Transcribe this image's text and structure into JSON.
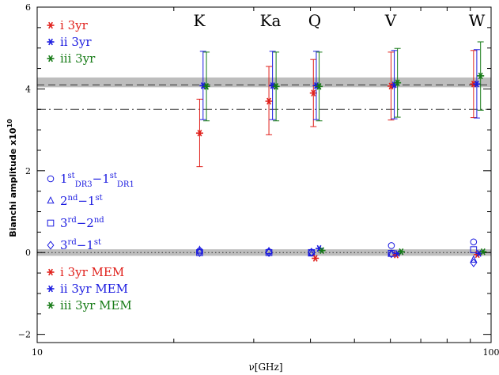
{
  "chart_data": {
    "type": "scatter",
    "xscale": "log",
    "xlim": [
      10,
      100
    ],
    "ylim": [
      -2.2,
      6
    ],
    "xlabel": "ν[GHz]",
    "ylabel": "Bianchi amplitude x10",
    "ylabel_sup": "10",
    "xticks": [
      {
        "value": 10,
        "label": "10"
      },
      {
        "value": 100,
        "label": "100"
      }
    ],
    "yticks": [
      {
        "value": -2,
        "label": "−2"
      },
      {
        "value": 0,
        "label": "0"
      },
      {
        "value": 2,
        "label": "2"
      },
      {
        "value": 4,
        "label": "4"
      },
      {
        "value": 6,
        "label": "6"
      }
    ],
    "bands": [
      {
        "name": "K",
        "freq": 23
      },
      {
        "name": "Ka",
        "freq": 33
      },
      {
        "name": "Q",
        "freq": 41
      },
      {
        "name": "V",
        "freq": 61
      },
      {
        "name": "W",
        "freq": 94
      }
    ],
    "reference_lines": [
      {
        "style": "dashed",
        "y": 4.1
      },
      {
        "style": "dashdot",
        "y": 3.5
      },
      {
        "style": "dotted",
        "y": 0.0
      }
    ],
    "shaded_bands": [
      {
        "y0": 4.04,
        "y1": 4.28
      },
      {
        "y0": -0.08,
        "y1": 0.08
      }
    ],
    "series": [
      {
        "name": "i 3yr",
        "color": "#e0201b",
        "points": [
          {
            "x": 22.8,
            "y": 2.92,
            "lo": 2.1,
            "hi": 3.75
          },
          {
            "x": 32.4,
            "y": 3.7,
            "lo": 2.88,
            "hi": 4.55
          },
          {
            "x": 40.6,
            "y": 3.9,
            "lo": 3.08,
            "hi": 4.72
          },
          {
            "x": 60.2,
            "y": 4.07,
            "lo": 3.24,
            "hi": 4.9
          },
          {
            "x": 91.5,
            "y": 4.12,
            "lo": 3.3,
            "hi": 4.94
          }
        ]
      },
      {
        "name": "ii 3yr",
        "color": "#1b1be0",
        "points": [
          {
            "x": 23.2,
            "y": 4.08,
            "lo": 3.25,
            "hi": 4.92
          },
          {
            "x": 33.0,
            "y": 4.08,
            "lo": 3.25,
            "hi": 4.92
          },
          {
            "x": 41.2,
            "y": 4.08,
            "lo": 3.25,
            "hi": 4.92
          },
          {
            "x": 61.2,
            "y": 4.1,
            "lo": 3.27,
            "hi": 4.94
          },
          {
            "x": 93.0,
            "y": 4.12,
            "lo": 3.29,
            "hi": 4.96
          }
        ]
      },
      {
        "name": "iii 3yr",
        "color": "#157a15",
        "points": [
          {
            "x": 23.6,
            "y": 4.06,
            "lo": 3.22,
            "hi": 4.9
          },
          {
            "x": 33.6,
            "y": 4.06,
            "lo": 3.22,
            "hi": 4.9
          },
          {
            "x": 41.8,
            "y": 4.06,
            "lo": 3.22,
            "hi": 4.9
          },
          {
            "x": 62.2,
            "y": 4.15,
            "lo": 3.31,
            "hi": 4.99
          },
          {
            "x": 94.8,
            "y": 4.32,
            "lo": 3.48,
            "hi": 5.15
          }
        ]
      },
      {
        "name": "i 3yr MEM",
        "color": "#e0201b",
        "points": [
          {
            "x": 41.0,
            "y": -0.14
          },
          {
            "x": 61.8,
            "y": -0.06
          },
          {
            "x": 93.3,
            "y": -0.05
          }
        ]
      },
      {
        "name": "ii 3yr MEM",
        "color": "#1b1be0",
        "points": [
          {
            "x": 41.8,
            "y": 0.1
          },
          {
            "x": 62.2,
            "y": -0.02
          },
          {
            "x": 94.1,
            "y": -0.02
          }
        ]
      },
      {
        "name": "iii 3yr MEM",
        "color": "#157a15",
        "points": [
          {
            "x": 42.4,
            "y": 0.05
          },
          {
            "x": 63.4,
            "y": 0.02
          },
          {
            "x": 96.0,
            "y": 0.02
          }
        ]
      }
    ],
    "difference_series": [
      {
        "symbol": "circle",
        "color": "#1b1be0",
        "points": [
          {
            "x": 22.8,
            "y": 0.04
          },
          {
            "x": 32.4,
            "y": 0.02
          },
          {
            "x": 40.2,
            "y": 0.0
          },
          {
            "x": 60.3,
            "y": 0.17
          },
          {
            "x": 91.5,
            "y": 0.26
          }
        ]
      },
      {
        "symbol": "triangle",
        "color": "#1b1be0",
        "points": [
          {
            "x": 22.8,
            "y": 0.06
          },
          {
            "x": 32.4,
            "y": 0.03
          },
          {
            "x": 40.2,
            "y": -0.03
          },
          {
            "x": 60.3,
            "y": -0.04
          },
          {
            "x": 91.5,
            "y": -0.18
          }
        ]
      },
      {
        "symbol": "square",
        "color": "#1b1be0",
        "points": [
          {
            "x": 22.8,
            "y": 0.0
          },
          {
            "x": 32.4,
            "y": 0.0
          },
          {
            "x": 40.2,
            "y": 0.0
          },
          {
            "x": 60.3,
            "y": -0.02
          },
          {
            "x": 91.5,
            "y": 0.07
          }
        ]
      },
      {
        "symbol": "diamond",
        "color": "#1b1be0",
        "points": [
          {
            "x": 22.8,
            "y": 0.0
          },
          {
            "x": 32.4,
            "y": 0.0
          },
          {
            "x": 40.2,
            "y": 0.01
          },
          {
            "x": 60.3,
            "y": -0.03
          },
          {
            "x": 91.5,
            "y": -0.25
          }
        ]
      }
    ],
    "legend_top": [
      {
        "text": "i  3yr",
        "color": "#e0201b"
      },
      {
        "text": "ii  3yr",
        "color": "#1b1be0"
      },
      {
        "text": "iii  3yr",
        "color": "#157a15"
      }
    ],
    "legend_diff": [
      {
        "symbol": "circle",
        "parts": [
          {
            "t": "1",
            "k": "n"
          },
          {
            "t": "st",
            "k": "sup"
          },
          {
            "t": "DR3",
            "k": "sub"
          },
          {
            "t": "−1",
            "k": "n"
          },
          {
            "t": "st",
            "k": "sup"
          },
          {
            "t": "DR1",
            "k": "sub"
          }
        ]
      },
      {
        "symbol": "triangle",
        "parts": [
          {
            "t": "2",
            "k": "n"
          },
          {
            "t": "nd",
            "k": "sup"
          },
          {
            "t": "−1",
            "k": "n"
          },
          {
            "t": "st",
            "k": "sup"
          }
        ]
      },
      {
        "symbol": "square",
        "parts": [
          {
            "t": "3",
            "k": "n"
          },
          {
            "t": "rd",
            "k": "sup"
          },
          {
            "t": "−2",
            "k": "n"
          },
          {
            "t": "nd",
            "k": "sup"
          }
        ]
      },
      {
        "symbol": "diamond",
        "parts": [
          {
            "t": "3",
            "k": "n"
          },
          {
            "t": "rd",
            "k": "sup"
          },
          {
            "t": "−1",
            "k": "n"
          },
          {
            "t": "st",
            "k": "sup"
          }
        ]
      }
    ],
    "legend_mem": [
      {
        "text": "i  3yr MEM",
        "color": "#e0201b"
      },
      {
        "text": "ii  3yr MEM",
        "color": "#1b1be0"
      },
      {
        "text": "iii  3yr MEM",
        "color": "#157a15"
      }
    ],
    "diff_color": "#1b1be0"
  }
}
